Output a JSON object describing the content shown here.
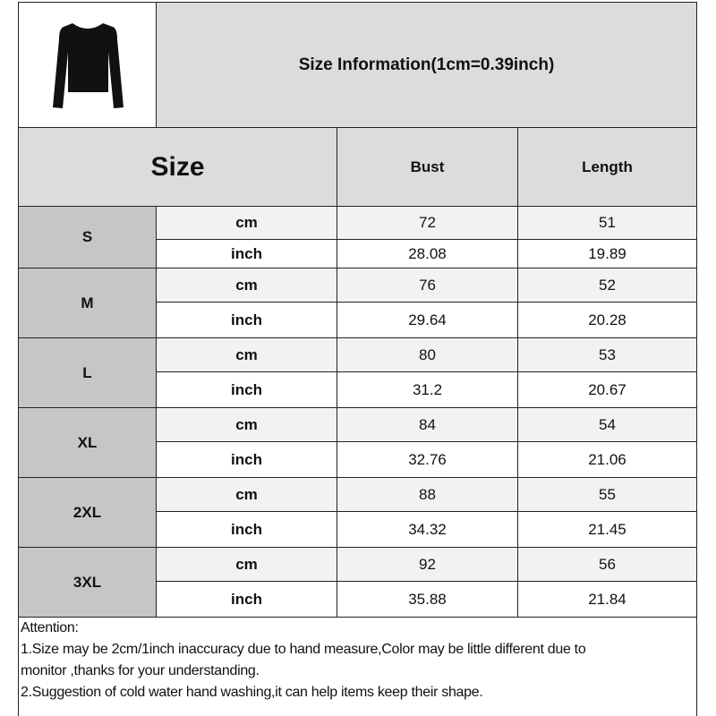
{
  "title": "Size Information(1cm=0.39inch)",
  "product_image": "black-long-sleeve-top",
  "headers": {
    "size": "Size",
    "bust": "Bust",
    "length": "Length"
  },
  "units": {
    "cm": "cm",
    "inch": "inch"
  },
  "rows": [
    {
      "size": "S",
      "cm": {
        "bust": "72",
        "length": "51"
      },
      "inch": {
        "bust": "28.08",
        "length": "19.89"
      }
    },
    {
      "size": "M",
      "cm": {
        "bust": "76",
        "length": "52"
      },
      "inch": {
        "bust": "29.64",
        "length": "20.28"
      }
    },
    {
      "size": "L",
      "cm": {
        "bust": "80",
        "length": "53"
      },
      "inch": {
        "bust": "31.2",
        "length": "20.67"
      }
    },
    {
      "size": "XL",
      "cm": {
        "bust": "84",
        "length": "54"
      },
      "inch": {
        "bust": "32.76",
        "length": "21.06"
      }
    },
    {
      "size": "2XL",
      "cm": {
        "bust": "88",
        "length": "55"
      },
      "inch": {
        "bust": "34.32",
        "length": "21.45"
      }
    },
    {
      "size": "3XL",
      "cm": {
        "bust": "92",
        "length": "56"
      },
      "inch": {
        "bust": "35.88",
        "length": "21.84"
      }
    }
  ],
  "notes": {
    "heading": "Attention:",
    "line1a": "1.Size may be 2cm/1inch inaccuracy due to hand measure,Color may be little different due to",
    "line1b": "monitor ,thanks for your understanding.",
    "line2": "2.Suggestion of cold water hand washing,it can help items keep their shape."
  }
}
